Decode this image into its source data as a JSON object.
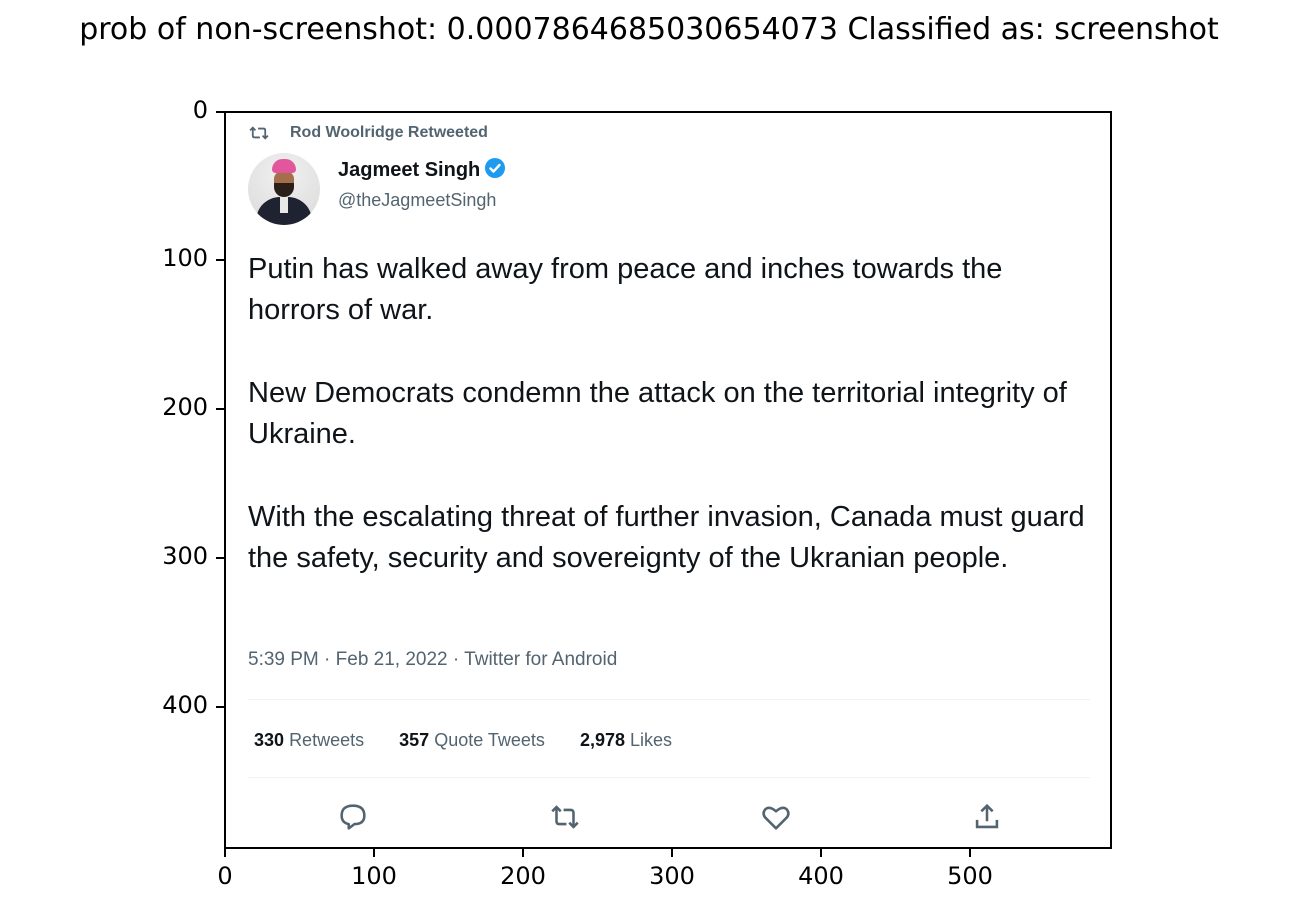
{
  "figure": {
    "title": "prob of non-screenshot: 0.0007864685030654073 Classified as: screenshot",
    "y_ticks": [
      "0",
      "100",
      "200",
      "300",
      "400"
    ],
    "x_ticks": [
      "0",
      "100",
      "200",
      "300",
      "400",
      "500"
    ]
  },
  "tweet": {
    "retweeted_by": "Rod Woolridge Retweeted",
    "author_name": "Jagmeet Singh",
    "author_handle": "@theJagmeetSingh",
    "paragraphs": [
      "Putin has walked away from peace and inches towards the horrors of war.",
      "New Democrats condemn the attack on the territorial integrity of Ukraine.",
      "With the escalating threat of further invasion, Canada must guard the safety, security and sovereignty of the Ukranian people."
    ],
    "meta": "5:39 PM · Feb 21, 2022 · Twitter for Android",
    "stats": {
      "retweets_count": "330",
      "retweets_label": "Retweets",
      "quotes_count": "357",
      "quotes_label": "Quote Tweets",
      "likes_count": "2,978",
      "likes_label": "Likes"
    }
  },
  "colors": {
    "verified": "#1d9bf0",
    "muted": "#536471",
    "text": "#0f1419"
  },
  "icons": [
    "retweet-icon",
    "verified-badge-icon",
    "reply-icon",
    "like-icon",
    "share-icon"
  ]
}
